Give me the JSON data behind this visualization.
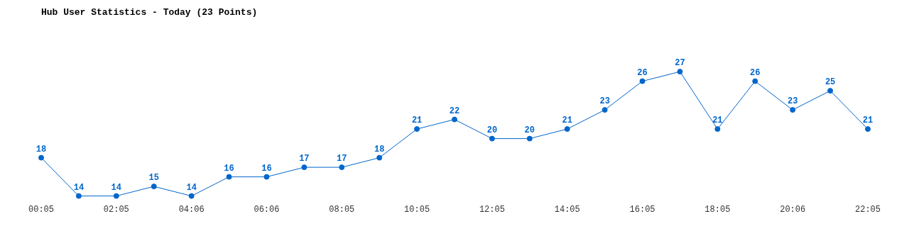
{
  "chart_data": {
    "type": "line",
    "title": "Hub User Statistics - Today (23 Points)",
    "categories": [
      "00:05",
      null,
      "02:05",
      null,
      "04:06",
      null,
      "06:06",
      null,
      "08:05",
      null,
      "10:05",
      null,
      "12:05",
      null,
      "14:05",
      null,
      "16:05",
      null,
      "18:05",
      null,
      "20:06",
      null,
      "22:05"
    ],
    "values": [
      18,
      14,
      14,
      15,
      14,
      16,
      16,
      17,
      17,
      18,
      21,
      22,
      20,
      20,
      21,
      23,
      26,
      27,
      21,
      26,
      23,
      25,
      21
    ],
    "color": "#0066cc",
    "marker": "circle",
    "line_style": "solid",
    "data_labels": true,
    "grid": false,
    "legend": false
  }
}
